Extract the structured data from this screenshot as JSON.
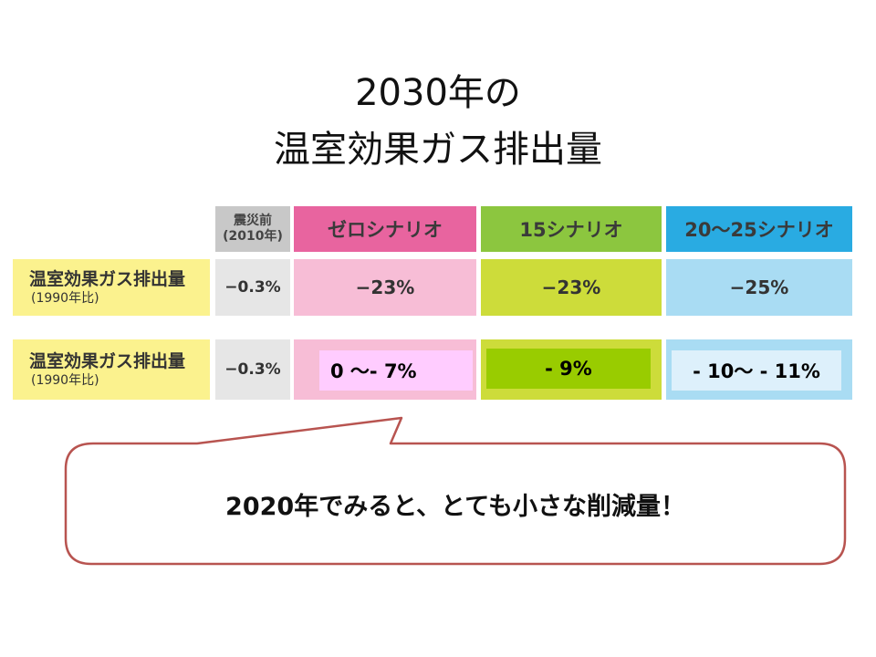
{
  "title": {
    "line1": "2030年の",
    "line2": "温室効果ガス排出量"
  },
  "table": {
    "header": {
      "pre_quake_line1": "震災前",
      "pre_quake_line2": "(2010年)",
      "zero": "ゼロシナリオ",
      "s15": "15シナリオ",
      "s2025": "20～25シナリオ"
    },
    "row1": {
      "label": "温室効果ガス排出量",
      "sublabel": "(1990年比)",
      "pre_quake": "−0.3%",
      "zero": "−23%",
      "s15": "−23%",
      "s2025": "−25%"
    },
    "row2": {
      "label": "温室効果ガス排出量",
      "sublabel": "(1990年比)",
      "pre_quake": "−0.3%",
      "zero": "0 ～- 7%",
      "s15": "-  9%",
      "s2025": "- 10～ - 11%"
    }
  },
  "callout": {
    "text": "2020年でみると、とても小さな削減量！"
  },
  "colors": {
    "label_yellow": "#fbf28e",
    "pre_quake_header": "#c8c8c8",
    "pre_quake_cell": "#e6e6e6",
    "zero_header": "#e8649f",
    "zero_cell": "#f7bdd6",
    "s15_header": "#8cc63f",
    "s15_cell": "#cddc3a",
    "s2025_header": "#29abe2",
    "s2025_cell": "#a9dcf3",
    "overlay_pink": "#ffccff",
    "overlay_green": "#99cc00",
    "overlay_blue": "#ddf0fb",
    "callout_border": "#b85450"
  }
}
